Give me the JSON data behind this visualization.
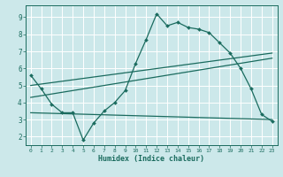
{
  "xlabel": "Humidex (Indice chaleur)",
  "bg_color": "#cce8ea",
  "grid_color": "#ffffff",
  "line_color": "#1a6b5e",
  "xlim": [
    -0.5,
    23.5
  ],
  "ylim": [
    1.5,
    9.7
  ],
  "xticks": [
    0,
    1,
    2,
    3,
    4,
    5,
    6,
    7,
    8,
    9,
    10,
    11,
    12,
    13,
    14,
    15,
    16,
    17,
    18,
    19,
    20,
    21,
    22,
    23
  ],
  "yticks": [
    2,
    3,
    4,
    5,
    6,
    7,
    8,
    9
  ],
  "line1_x": [
    0,
    1,
    2,
    3,
    4,
    5,
    6,
    7,
    8,
    9,
    10,
    11,
    12,
    13,
    14,
    15,
    16,
    17,
    18,
    19,
    20,
    21,
    22,
    23
  ],
  "line1_y": [
    5.6,
    4.8,
    3.9,
    3.4,
    3.4,
    1.8,
    2.8,
    3.5,
    4.0,
    4.7,
    6.3,
    7.7,
    9.2,
    8.5,
    8.7,
    8.4,
    8.3,
    8.1,
    7.5,
    6.9,
    6.0,
    4.8,
    3.3,
    2.9
  ],
  "line2_x": [
    0,
    23
  ],
  "line2_y": [
    3.4,
    3.0
  ],
  "line3_x": [
    0,
    23
  ],
  "line3_y": [
    4.3,
    6.6
  ],
  "line4_x": [
    0,
    23
  ],
  "line4_y": [
    5.0,
    6.9
  ]
}
